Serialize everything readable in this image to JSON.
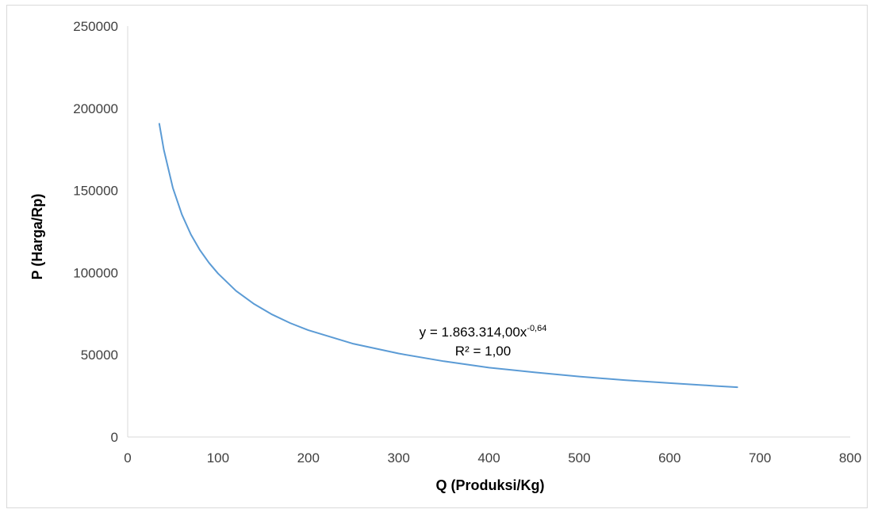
{
  "chart_data": {
    "type": "line",
    "title": "",
    "xlabel": "Q (Produksi/Kg)",
    "ylabel": "P (Harga/Rp)",
    "xlim": [
      0,
      800
    ],
    "ylim": [
      0,
      250000
    ],
    "x_ticks": [
      "0",
      "100",
      "200",
      "300",
      "400",
      "500",
      "600",
      "700",
      "800"
    ],
    "y_ticks": [
      "0",
      "50000",
      "100000",
      "150000",
      "200000",
      "250000"
    ],
    "grid": false,
    "legend": "none",
    "series": [
      {
        "color": "#5b9bd5",
        "x": [
          35,
          40,
          50,
          60,
          70,
          80,
          90,
          100,
          120,
          140,
          160,
          180,
          200,
          250,
          300,
          350,
          400,
          450,
          500,
          550,
          600,
          650,
          675
        ],
        "y": [
          190600,
          174800,
          151600,
          135400,
          123200,
          113700,
          106000,
          99500,
          88900,
          80900,
          74500,
          69300,
          65000,
          56700,
          50800,
          46100,
          42200,
          39400,
          36800,
          34600,
          32800,
          31100,
          30300
        ]
      }
    ],
    "annotations": {
      "equation_main": "y = 1.863.314,00x",
      "equation_exponent": "-0,64",
      "r_squared": "R² = 1,00"
    }
  }
}
